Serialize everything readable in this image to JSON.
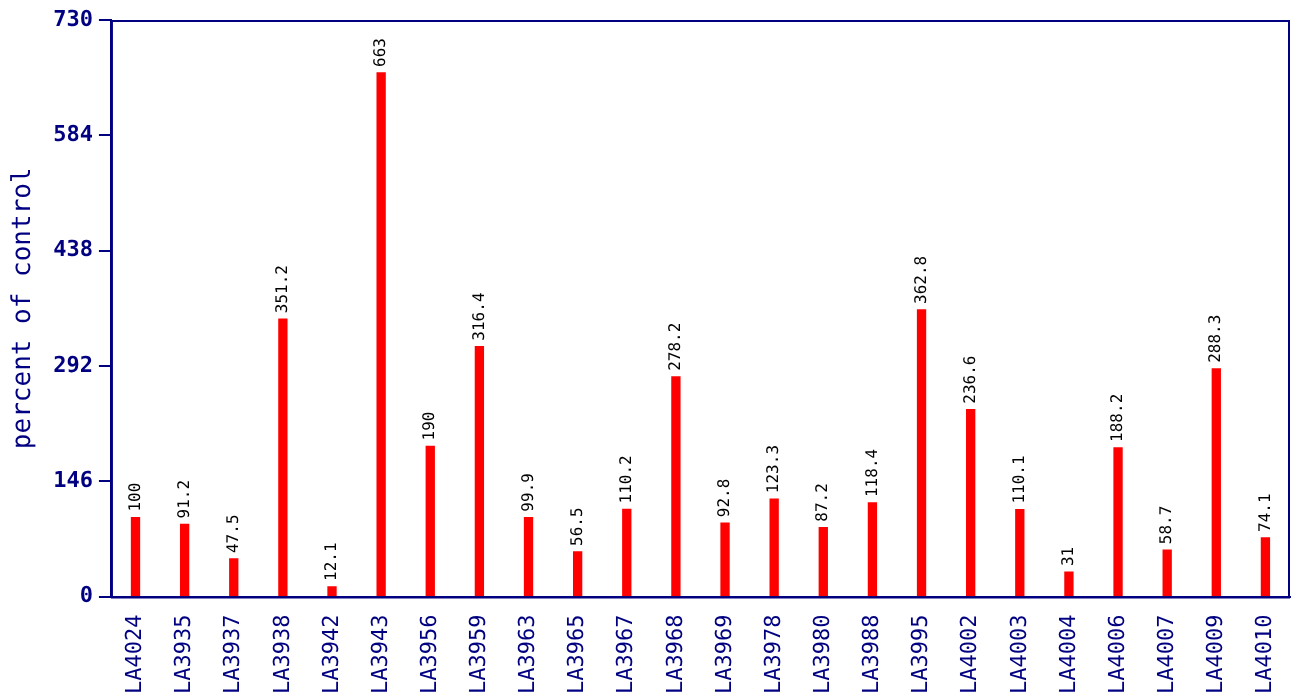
{
  "chart_data": {
    "type": "bar",
    "ylabel": "percent of control",
    "categories": [
      "LA4024",
      "LA3935",
      "LA3937",
      "LA3938",
      "LA3942",
      "LA3943",
      "LA3956",
      "LA3959",
      "LA3963",
      "LA3965",
      "LA3967",
      "LA3968",
      "LA3969",
      "LA3978",
      "LA3980",
      "LA3988",
      "LA3995",
      "LA4002",
      "LA4003",
      "LA4004",
      "LA4006",
      "LA4007",
      "LA4009",
      "LA4010"
    ],
    "values": [
      100,
      91.2,
      47.5,
      351.2,
      12.1,
      663,
      190,
      316.4,
      99.9,
      56.5,
      110.2,
      278.2,
      92.8,
      123.3,
      87.2,
      118.4,
      362.8,
      236.6,
      110.1,
      31,
      188.2,
      58.7,
      288.3,
      74.1
    ],
    "color": "#ff0000",
    "ylim": [
      0,
      730
    ],
    "yticks": [
      0,
      146,
      292,
      438,
      584,
      730
    ],
    "grid": false,
    "legend": false,
    "data_labels": true
  }
}
